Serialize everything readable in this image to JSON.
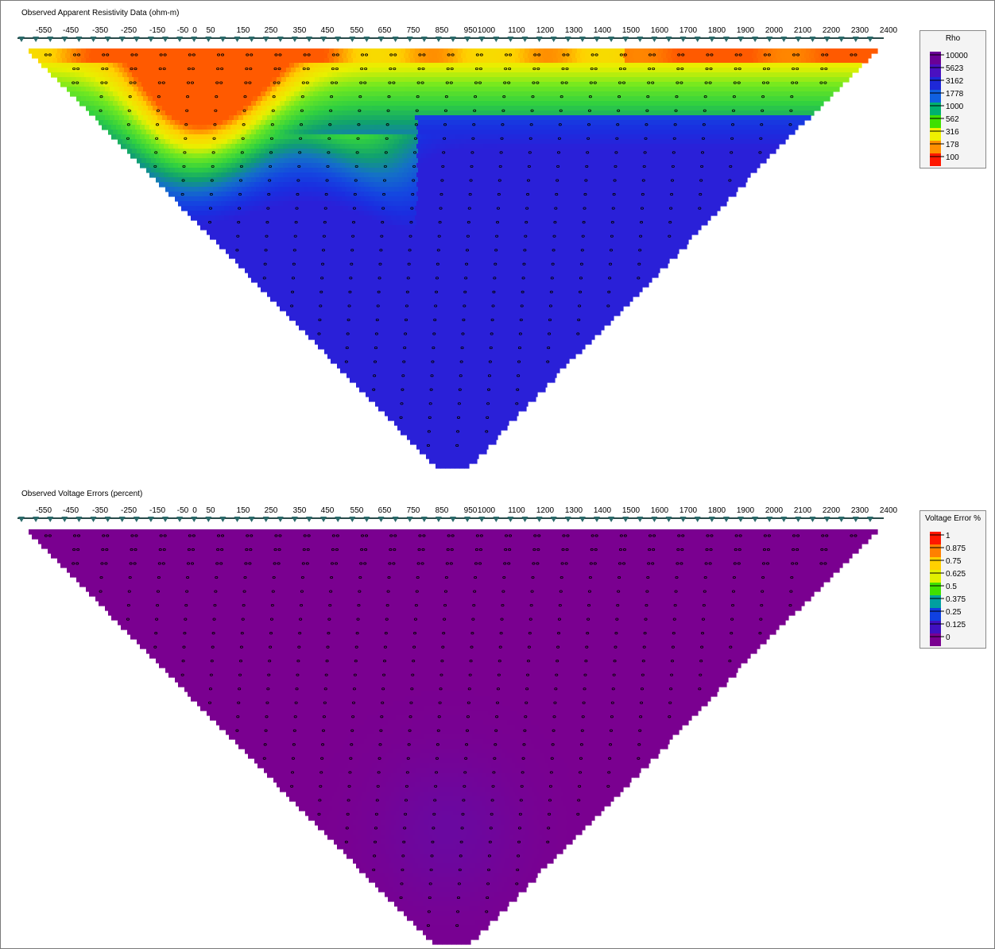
{
  "chart_data": [
    {
      "type": "heatmap",
      "title": "Observed Apparent Resistivity Data (ohm-m)",
      "x_tick_labels": [
        "-550",
        "-450",
        "-350",
        "-250",
        "-150",
        "-50",
        "0",
        "50",
        "150",
        "250",
        "350",
        "450",
        "550",
        "650",
        "750",
        "850",
        "950",
        "1000",
        "1100",
        "1200",
        "1300",
        "1400",
        "1500",
        "1600",
        "1700",
        "1800",
        "1900",
        "2000",
        "2100",
        "2200",
        "2300",
        "2400"
      ],
      "xlim": [
        -600,
        2400
      ],
      "legend": {
        "title": "Rho",
        "position": "top-right",
        "labels": [
          "10000",
          "5623",
          "3162",
          "1778",
          "1000",
          "562",
          "316",
          "178",
          "100"
        ],
        "colors": [
          "#6a0096",
          "#4a10c0",
          "#1e28d8",
          "#1060e0",
          "#00b070",
          "#40e000",
          "#f0f000",
          "#ff9000",
          "#ff1800"
        ]
      },
      "pseudosection": {
        "shape": "inverted-triangle",
        "levels": 29,
        "dominant_deep_value": "1778-3162"
      }
    },
    {
      "type": "heatmap",
      "title": "Observed Voltage Errors (percent)",
      "x_tick_labels": [
        "-550",
        "-450",
        "-350",
        "-250",
        "-150",
        "-50",
        "0",
        "50",
        "150",
        "250",
        "350",
        "450",
        "550",
        "650",
        "750",
        "850",
        "950",
        "1000",
        "1100",
        "1200",
        "1300",
        "1400",
        "1500",
        "1600",
        "1700",
        "1800",
        "1900",
        "2000",
        "2100",
        "2200",
        "2300",
        "2400"
      ],
      "xlim": [
        -600,
        2400
      ],
      "legend": {
        "title": "Voltage Error %",
        "position": "top-right",
        "labels": [
          "1",
          "0.875",
          "0.75",
          "0.625",
          "0.5",
          "0.375",
          "0.25",
          "0.125",
          "0"
        ],
        "colors": [
          "#ff1800",
          "#ff8000",
          "#ffd000",
          "#e0f000",
          "#40e000",
          "#00a0a0",
          "#1040e0",
          "#4010c0",
          "#7a0090"
        ]
      },
      "pseudosection": {
        "shape": "inverted-triangle",
        "levels": 29,
        "dominant_value": "0"
      }
    }
  ]
}
